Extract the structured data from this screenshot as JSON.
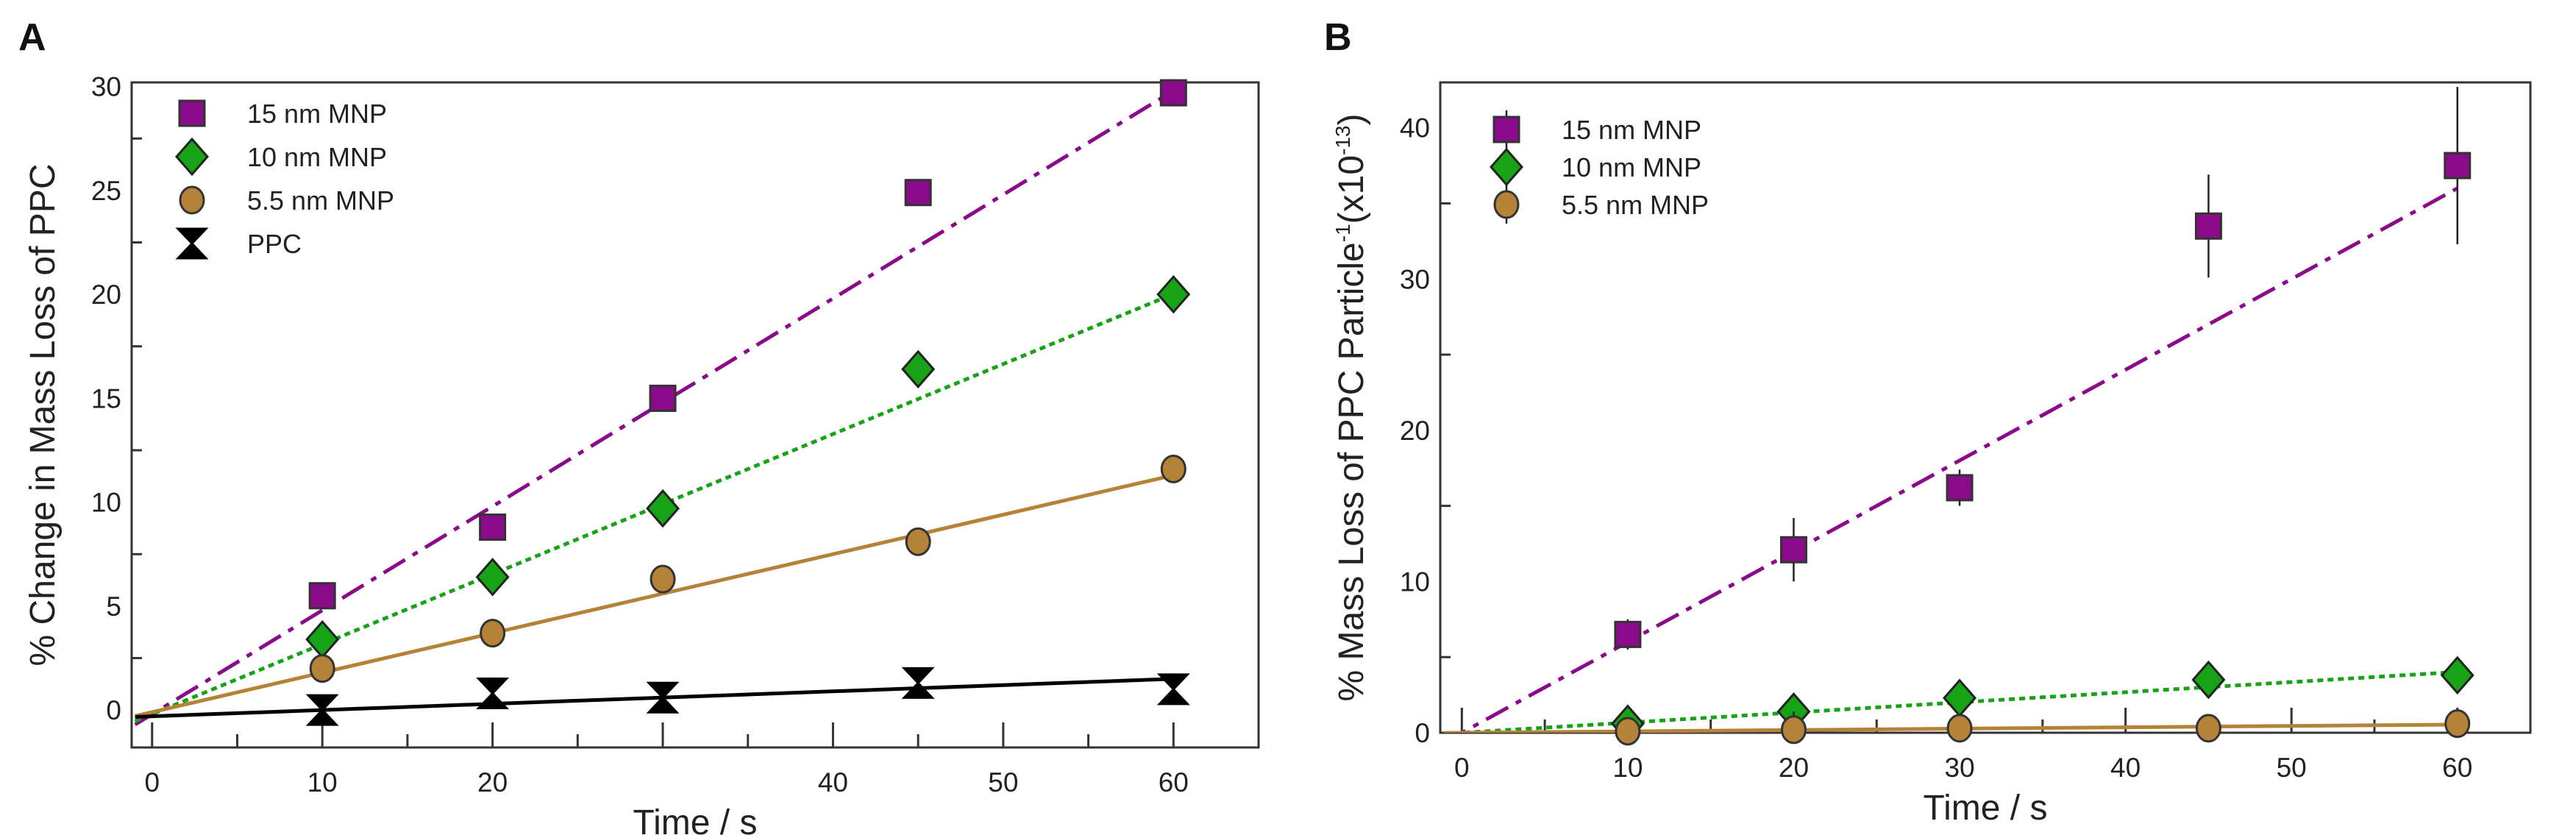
{
  "chart_data": [
    {
      "panel": "A",
      "type": "scatter",
      "xlabel": "Time / s",
      "ylabel": "% Change in Mass Loss of PPC",
      "xlim": [
        -1.2,
        65
      ],
      "ylim": [
        -1.8,
        30.2
      ],
      "xticks": [
        0,
        10,
        20,
        30,
        40,
        50,
        60
      ],
      "xtick_labels": [
        "0",
        "10",
        "20",
        "",
        "40",
        "50",
        "60"
      ],
      "yticks": [
        0,
        5,
        10,
        15,
        20,
        25,
        30
      ],
      "ytick_labels": [
        "0",
        "5",
        "10",
        "15",
        "20",
        "25",
        "30"
      ],
      "x_minor_step": 5,
      "y_minor_step": 2.5,
      "grid": false,
      "legend_placement": "top-left",
      "series": [
        {
          "name": "15 nm MNP",
          "marker": "square",
          "color": "#8b0a8b",
          "line": "dashdot",
          "x": [
            10,
            20,
            30,
            45,
            60
          ],
          "y": [
            5.5,
            8.8,
            15.0,
            24.9,
            29.7
          ],
          "fit": {
            "slope": 0.5,
            "intercept": -0.2
          }
        },
        {
          "name": "10 nm MNP",
          "marker": "diamond",
          "color": "#16a316",
          "line": "dotted",
          "x": [
            10,
            20,
            30,
            45,
            60
          ],
          "y": [
            3.4,
            6.4,
            9.7,
            16.4,
            20.0
          ],
          "fit": {
            "slope": 0.337,
            "intercept": -0.2
          }
        },
        {
          "name": "5.5 nm MNP",
          "marker": "circle",
          "color": "#b58338",
          "line": "solid",
          "x": [
            10,
            20,
            30,
            45,
            60
          ],
          "y": [
            2.0,
            3.7,
            6.3,
            8.1,
            11.6
          ],
          "fit": {
            "slope": 0.19,
            "intercept": -0.1
          }
        },
        {
          "name": "PPC",
          "marker": "hourglass",
          "color": "#000000",
          "line": "solid",
          "x": [
            10,
            20,
            30,
            45,
            60
          ],
          "y": [
            0.0,
            0.8,
            0.6,
            1.3,
            1.0
          ],
          "fit": {
            "slope": 0.03,
            "intercept": -0.3
          }
        }
      ]
    },
    {
      "panel": "B",
      "type": "scatter",
      "xlabel": "Time / s",
      "ylabel": "% Mass Loss of PPC Particle",
      "ylabel_sup1": "-1",
      "ylabel_mid": "(x10",
      "ylabel_sup2": "-13",
      "ylabel_end": ")",
      "xlim": [
        -1.3,
        64.4
      ],
      "ylim": [
        0,
        43
      ],
      "xticks": [
        0,
        10,
        20,
        30,
        40,
        50,
        60
      ],
      "xtick_labels": [
        "0",
        "10",
        "20",
        "30",
        "40",
        "50",
        "60"
      ],
      "yticks": [
        0,
        10,
        20,
        30,
        40
      ],
      "ytick_labels": [
        "0",
        "10",
        "20",
        "30",
        "40"
      ],
      "x_minor_step": 5,
      "y_minor_step": 5,
      "grid": false,
      "legend_placement": "top-left",
      "series": [
        {
          "name": "15 nm MNP",
          "marker": "square",
          "color": "#8b0a8b",
          "line": "dashdot",
          "x": [
            10,
            20,
            30,
            45,
            60
          ],
          "y": [
            6.5,
            12.1,
            16.2,
            33.5,
            37.5
          ],
          "err": [
            1.0,
            2.1,
            1.2,
            3.4,
            5.2
          ],
          "fit": {
            "slope": 0.6,
            "intercept": 0
          }
        },
        {
          "name": "10 nm MNP",
          "marker": "diamond",
          "color": "#16a316",
          "line": "dotted",
          "x": [
            10,
            20,
            30,
            45,
            60
          ],
          "y": [
            0.6,
            1.4,
            2.3,
            3.5,
            3.8
          ],
          "err": [
            0.4,
            0.5,
            1.2,
            0.4,
            0.4
          ],
          "fit": {
            "slope": 0.067,
            "intercept": 0
          }
        },
        {
          "name": "5.5 nm MNP",
          "marker": "circle",
          "color": "#b58338",
          "line": "solid",
          "x": [
            10,
            20,
            30,
            45,
            60
          ],
          "y": [
            0.1,
            0.2,
            0.3,
            0.3,
            0.6
          ],
          "err": [
            0.3,
            1.2,
            0.3,
            0.5,
            0.5
          ],
          "fit": {
            "slope": 0.009,
            "intercept": 0
          }
        }
      ]
    }
  ]
}
